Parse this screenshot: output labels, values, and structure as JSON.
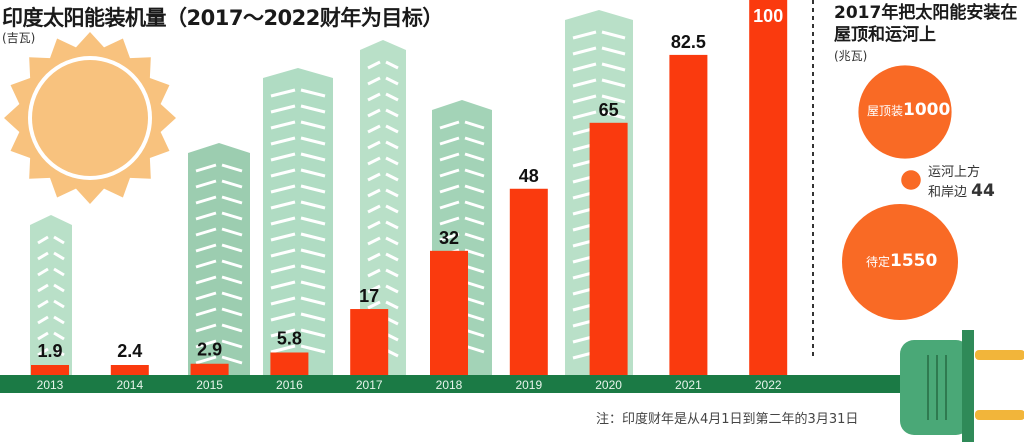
{
  "title": "印度太阳能装机量（2017～2022财年为目标）",
  "unit": "(吉瓦)",
  "note": "注：印度财年是从4月1日到第二年的3月31日",
  "colors": {
    "bar": "#fa3a0e",
    "axis": "#1b7a45",
    "building": "#a8d9bd",
    "sun": "#f8c27e",
    "circle": "#f96a25"
  },
  "chart_data": [
    {
      "type": "bar",
      "title": "印度太阳能装机量（2017～2022财年为目标）",
      "ylabel": "(吉瓦)",
      "categories": [
        "2013",
        "2014",
        "2015",
        "2016",
        "2017",
        "2018",
        "2019",
        "2020",
        "2021",
        "2022"
      ],
      "values": [
        1.9,
        2.4,
        2.9,
        5.8,
        17,
        32,
        48,
        65,
        82.5,
        100
      ],
      "value_labels": [
        "1.9",
        "2.4",
        "2.9",
        "5.8",
        "17",
        "32",
        "48",
        "65",
        "82.5",
        "100"
      ],
      "grid": false
    },
    {
      "type": "bubble",
      "title": "2017年把太阳能安装在屋顶和运河上",
      "unit": "(兆瓦)",
      "items": [
        {
          "label": "屋顶装",
          "value": 1000
        },
        {
          "label": "运河上方和岸边",
          "label_lines": [
            "运河上方",
            "和岸边"
          ],
          "value": 44
        },
        {
          "label": "待定",
          "value": 1550
        }
      ]
    }
  ]
}
